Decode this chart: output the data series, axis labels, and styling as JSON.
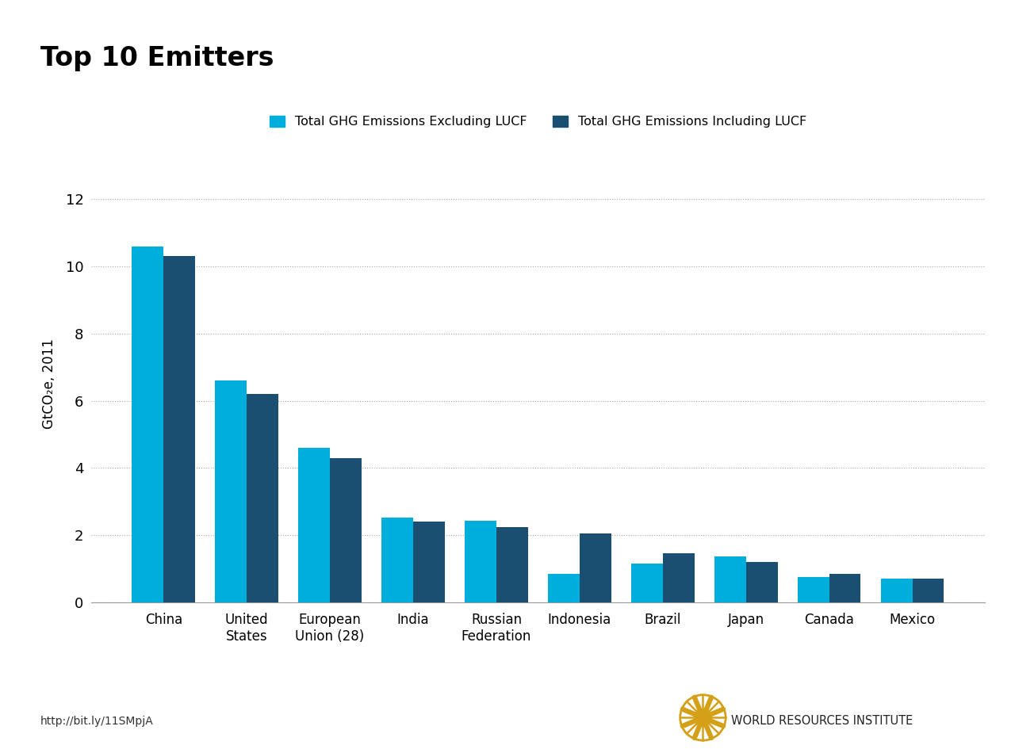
{
  "title": "Top 10 Emitters",
  "categories": [
    "China",
    "United\nStates",
    "European\nUnion (28)",
    "India",
    "Russian\nFederation",
    "Indonesia",
    "Brazil",
    "Japan",
    "Canada",
    "Mexico"
  ],
  "excluding_lucf": [
    10.6,
    6.6,
    4.6,
    2.52,
    2.42,
    0.85,
    1.15,
    1.36,
    0.75,
    0.7
  ],
  "including_lucf": [
    10.3,
    6.2,
    4.3,
    2.4,
    2.25,
    2.05,
    1.46,
    1.21,
    0.86,
    0.7
  ],
  "color_excluding": "#00AEDB",
  "color_including": "#1B4F72",
  "ylabel": "GtCO₂e, 2011",
  "legend_excluding": "Total GHG Emissions Excluding LUCF",
  "legend_including": "Total GHG Emissions Including LUCF",
  "ylim": [
    0,
    13
  ],
  "yticks": [
    0,
    2,
    4,
    6,
    8,
    10,
    12
  ],
  "background_color": "#ffffff",
  "url_text": "http://bit.ly/11SMpjA",
  "wri_text": "WORLD RESOURCES INSTITUTE",
  "title_fontsize": 24,
  "label_fontsize": 12,
  "tick_fontsize": 13
}
